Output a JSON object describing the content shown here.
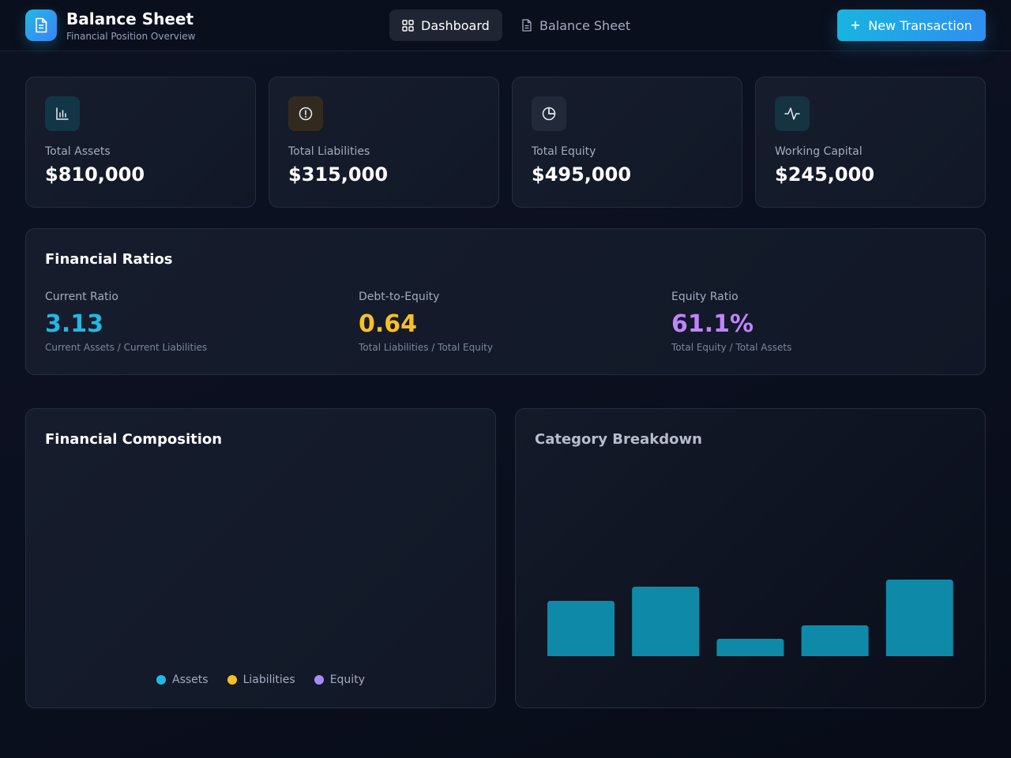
{
  "header": {
    "title": "Balance Sheet",
    "subtitle": "Financial Position Overview",
    "logo_icon": "document-icon",
    "tabs": [
      {
        "label": "Dashboard",
        "icon": "grid-icon",
        "active": true
      },
      {
        "label": "Balance Sheet",
        "icon": "document-icon",
        "active": false
      }
    ],
    "new_button": {
      "label": "New Transaction",
      "icon": "plus-icon"
    }
  },
  "stats": [
    {
      "label": "Total Assets",
      "value": "$810,000",
      "icon": "bar-chart-icon",
      "color": "#22b8e6"
    },
    {
      "label": "Total Liabilities",
      "value": "$315,000",
      "icon": "alert-circle-icon",
      "color": "#fbbf24"
    },
    {
      "label": "Total Equity",
      "value": "$495,000",
      "icon": "pie-chart-icon",
      "color": "#a78bfa"
    },
    {
      "label": "Working Capital",
      "value": "$245,000",
      "icon": "activity-icon",
      "color": "#22b8e6"
    }
  ],
  "ratios": {
    "title": "Financial Ratios",
    "items": [
      {
        "label": "Current Ratio",
        "value": "3.13",
        "formula": "Current Assets / Current Liabilities",
        "color": "#22b8e6"
      },
      {
        "label": "Debt-to-Equity",
        "value": "0.64",
        "formula": "Total Liabilities / Total Equity",
        "color": "#fbbf24"
      },
      {
        "label": "Equity Ratio",
        "value": "61.1%",
        "formula": "Total Equity / Total Assets",
        "color": "#c084fc"
      }
    ]
  },
  "composition": {
    "title": "Financial Composition",
    "legend": [
      {
        "label": "Assets",
        "color": "#22b8e6"
      },
      {
        "label": "Liabilities",
        "color": "#fbbf24"
      },
      {
        "label": "Equity",
        "color": "#a78bfa"
      }
    ]
  },
  "breakdown": {
    "title": "Category Breakdown",
    "bar_color": "#0e8aa8"
  },
  "chart_data": {
    "type": "bar",
    "title": "Category Breakdown",
    "values": [
      70,
      88,
      22,
      39,
      97
    ],
    "ylim": [
      0,
      100
    ],
    "grid": false
  }
}
